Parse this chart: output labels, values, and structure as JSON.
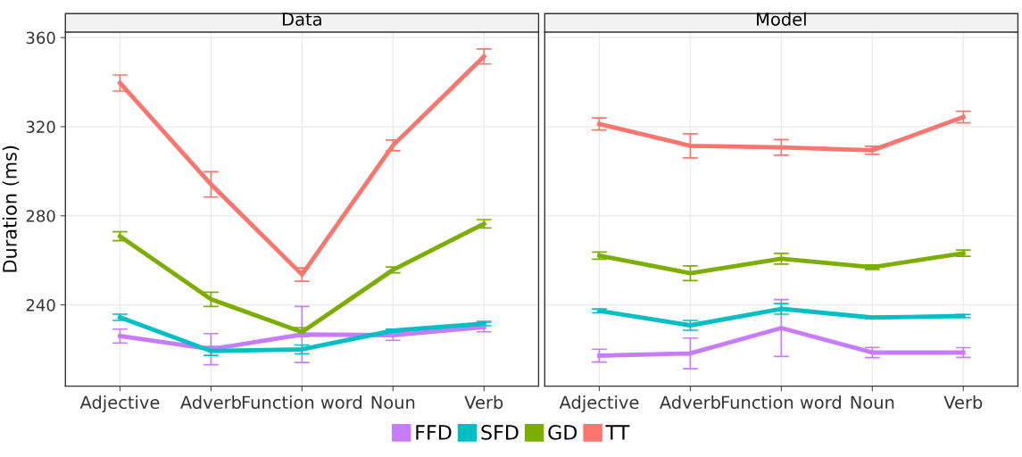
{
  "chart_data": [
    {
      "type": "line",
      "title": "Data",
      "ylabel": "Duration (ms)",
      "categories": [
        "Adjective",
        "Adverb",
        "Function word",
        "Noun",
        "Verb"
      ],
      "ylim": [
        203.5,
        362.5
      ],
      "yticks": [
        240,
        280,
        320,
        360
      ],
      "grid": true,
      "legend": "bottom",
      "marker": "none",
      "line_style": "solid",
      "series": [
        {
          "name": "FFD",
          "color": "#c77cff",
          "values": [
            226,
            220.1,
            226.7,
            226.4,
            230
          ],
          "errors": [
            3.1,
            7,
            12.6,
            2.3,
            2.1
          ]
        },
        {
          "name": "SFD",
          "color": "#00bfc4",
          "values": [
            234.4,
            219.3,
            220,
            228.4,
            231.6
          ],
          "errors": [
            1.4,
            2,
            2,
            0.7,
            1
          ]
        },
        {
          "name": "GD",
          "color": "#7cae00",
          "values": [
            270.8,
            242.5,
            227.8,
            255.7,
            276.4
          ],
          "errors": [
            2,
            3.2,
            2,
            1.3,
            1.9
          ]
        },
        {
          "name": "TT",
          "color": "#f8766d",
          "values": [
            339.6,
            294.1,
            253.6,
            311.6,
            351.5
          ],
          "errors": [
            3.6,
            5.7,
            3,
            2.4,
            3.4
          ]
        }
      ]
    },
    {
      "type": "line",
      "title": "Model",
      "categories": [
        "Adjective",
        "Adverb",
        "Function word",
        "Noun",
        "Verb"
      ],
      "ylim": [
        203.5,
        362.5
      ],
      "yticks": [
        240,
        280,
        320,
        360
      ],
      "tick_labels": "x",
      "grid": true,
      "marker": "none",
      "line_style": "solid",
      "series": [
        {
          "color": "#c77cff",
          "values": [
            217.2,
            218.2,
            229.6,
            218.6,
            218.6
          ],
          "errors": [
            2.9,
            6.9,
            12.8,
            2.3,
            2.2
          ]
        },
        {
          "color": "#00bfc4",
          "values": [
            237.3,
            230.8,
            238.2,
            234.3,
            235
          ],
          "errors": [
            0.9,
            2.2,
            2.4,
            0.6,
            0.7
          ]
        },
        {
          "color": "#7cae00",
          "values": [
            262.1,
            254.2,
            260.7,
            256.9,
            263.2
          ],
          "errors": [
            1.6,
            3.3,
            2.4,
            1,
            1.4
          ]
        },
        {
          "color": "#f8766d",
          "values": [
            321.2,
            311.4,
            310.7,
            309.4,
            324.3
          ],
          "errors": [
            2.7,
            5.4,
            3.5,
            1.8,
            2.6
          ]
        }
      ]
    }
  ]
}
